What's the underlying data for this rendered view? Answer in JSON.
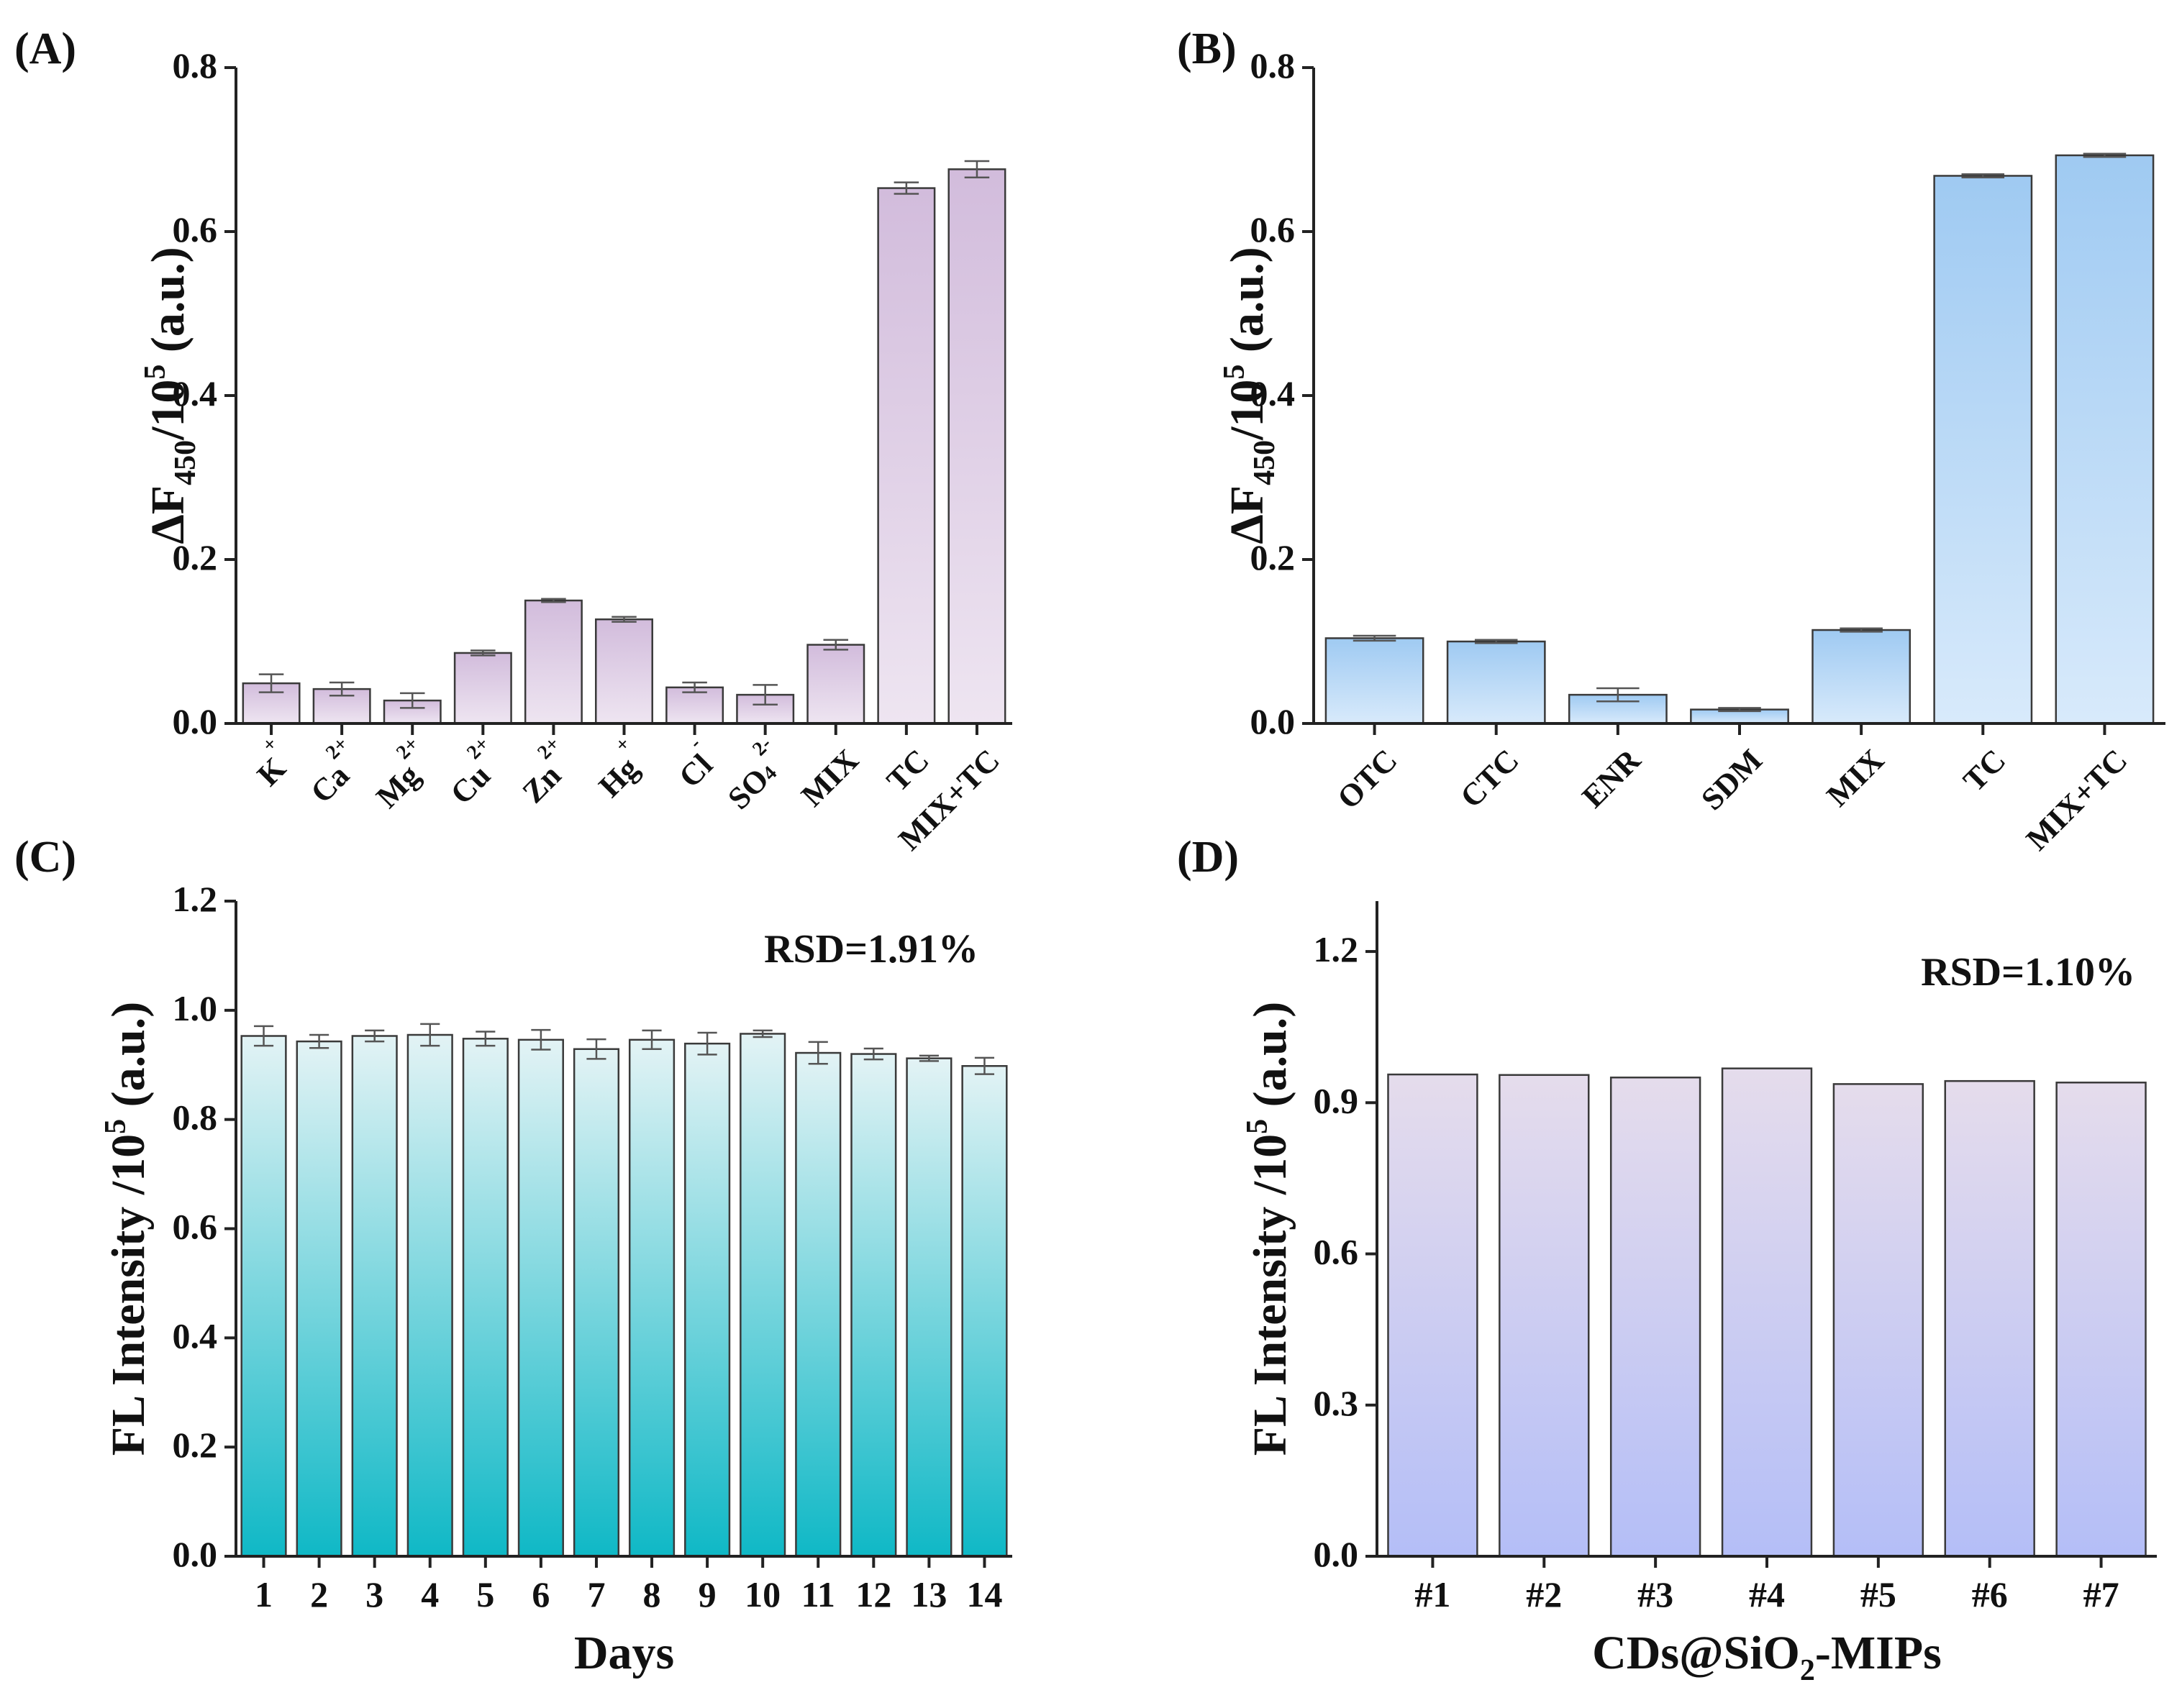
{
  "chart_data": [
    {
      "panel_label": "(A)",
      "type": "bar",
      "ylabel": "ΔF450/10⁵ (a.u.)",
      "ylabel_main": "ΔF",
      "ylabel_sub": "450",
      "ylabel_rest": "/10",
      "ylabel_sup": "5",
      "ylabel_tail": " (a.u.)",
      "xlabel": "",
      "ylim": [
        0,
        0.8
      ],
      "yticks": [
        0.0,
        0.2,
        0.4,
        0.6,
        0.8
      ],
      "ytick_labels": [
        "0.0",
        "0.2",
        "0.4",
        "0.6",
        "0.8"
      ],
      "tick_labels_rotated": true,
      "categories": [
        {
          "base": "K",
          "sup": "+",
          "sub": ""
        },
        {
          "base": "Ca",
          "sup": "2+",
          "sub": ""
        },
        {
          "base": "Mg",
          "sup": "2+",
          "sub": ""
        },
        {
          "base": "Cu",
          "sup": "2+",
          "sub": ""
        },
        {
          "base": "Zn",
          "sup": "2+",
          "sub": ""
        },
        {
          "base": "Hg",
          "sup": "+",
          "sub": ""
        },
        {
          "base": "Cl",
          "sup": "-",
          "sub": ""
        },
        {
          "base": "SO",
          "sup": "2-",
          "sub": "4"
        },
        {
          "base": "MIX",
          "sup": "",
          "sub": ""
        },
        {
          "base": "TC",
          "sup": "",
          "sub": ""
        },
        {
          "base": "MIX+TC",
          "sup": "",
          "sub": ""
        }
      ],
      "values": [
        0.049,
        0.042,
        0.028,
        0.086,
        0.15,
        0.127,
        0.044,
        0.035,
        0.096,
        0.653,
        0.676
      ],
      "errors": [
        0.011,
        0.008,
        0.009,
        0.003,
        0.002,
        0.003,
        0.006,
        0.012,
        0.006,
        0.007,
        0.01
      ],
      "colors": {
        "top": "#d2bcdc",
        "bottom": "#eee5f1"
      }
    },
    {
      "panel_label": "(B)",
      "type": "bar",
      "ylabel": "ΔF450/10⁵ (a.u.)",
      "ylabel_main": "ΔF",
      "ylabel_sub": "450",
      "ylabel_rest": "/10",
      "ylabel_sup": "5",
      "ylabel_tail": " (a.u.)",
      "xlabel": "",
      "ylim": [
        0,
        0.8
      ],
      "yticks": [
        0.0,
        0.2,
        0.4,
        0.6,
        0.8
      ],
      "ytick_labels": [
        "0.0",
        "0.2",
        "0.4",
        "0.6",
        "0.8"
      ],
      "tick_labels_rotated": true,
      "categories": [
        {
          "base": "OTC",
          "sup": "",
          "sub": ""
        },
        {
          "base": "CTC",
          "sup": "",
          "sub": ""
        },
        {
          "base": "ENR",
          "sup": "",
          "sub": ""
        },
        {
          "base": "SDM",
          "sup": "",
          "sub": ""
        },
        {
          "base": "MIX",
          "sup": "",
          "sub": ""
        },
        {
          "base": "TC",
          "sup": "",
          "sub": ""
        },
        {
          "base": "MIX+TC",
          "sup": "",
          "sub": ""
        }
      ],
      "values": [
        0.104,
        0.1,
        0.035,
        0.017,
        0.114,
        0.668,
        0.693
      ],
      "errors": [
        0.003,
        0.002,
        0.008,
        0.002,
        0.002,
        0.002,
        0.002
      ],
      "colors": {
        "top": "#9fcaf2",
        "bottom": "#d8eafb"
      }
    },
    {
      "panel_label": "(C)",
      "type": "bar",
      "ylabel": "FL Intensity /10⁵ (a.u.)",
      "ylabel_main": "FL Intensity /10",
      "ylabel_sub": "",
      "ylabel_rest": "",
      "ylabel_sup": "5",
      "ylabel_tail": " (a.u.)",
      "xlabel": "Days",
      "xlabel_main": "Days",
      "xlabel_sub": "",
      "xlabel_tail": "",
      "annotation": "RSD=1.91%",
      "ylim": [
        0,
        1.2
      ],
      "yticks": [
        0.0,
        0.2,
        0.4,
        0.6,
        0.8,
        1.0,
        1.2
      ],
      "ytick_labels": [
        "0.0",
        "0.2",
        "0.4",
        "0.6",
        "0.8",
        "1.0",
        "1.2"
      ],
      "tick_labels_rotated": false,
      "categories": [
        {
          "base": "1",
          "sup": "",
          "sub": ""
        },
        {
          "base": "2",
          "sup": "",
          "sub": ""
        },
        {
          "base": "3",
          "sup": "",
          "sub": ""
        },
        {
          "base": "4",
          "sup": "",
          "sub": ""
        },
        {
          "base": "5",
          "sup": "",
          "sub": ""
        },
        {
          "base": "6",
          "sup": "",
          "sub": ""
        },
        {
          "base": "7",
          "sup": "",
          "sub": ""
        },
        {
          "base": "8",
          "sup": "",
          "sub": ""
        },
        {
          "base": "9",
          "sup": "",
          "sub": ""
        },
        {
          "base": "10",
          "sup": "",
          "sub": ""
        },
        {
          "base": "11",
          "sup": "",
          "sub": ""
        },
        {
          "base": "12",
          "sup": "",
          "sub": ""
        },
        {
          "base": "13",
          "sup": "",
          "sub": ""
        },
        {
          "base": "14",
          "sup": "",
          "sub": ""
        }
      ],
      "values": [
        0.953,
        0.943,
        0.953,
        0.955,
        0.948,
        0.946,
        0.929,
        0.946,
        0.939,
        0.957,
        0.922,
        0.92,
        0.912,
        0.898
      ],
      "errors": [
        0.018,
        0.012,
        0.01,
        0.02,
        0.013,
        0.018,
        0.018,
        0.017,
        0.02,
        0.006,
        0.02,
        0.01,
        0.005,
        0.015
      ],
      "colors": {
        "top": "#e3f3f5",
        "bottom": "#0fb8c6"
      }
    },
    {
      "panel_label": "(D)",
      "type": "bar",
      "ylabel": "FL Intensity /10⁵ (a.u.)",
      "ylabel_main": "FL Intensity /10",
      "ylabel_sub": "",
      "ylabel_rest": "",
      "ylabel_sup": "5",
      "ylabel_tail": " (a.u.)",
      "xlabel": "CDs@SiO2-MIPs",
      "xlabel_main": "CDs@SiO",
      "xlabel_sub": "2",
      "xlabel_tail": "-MIPs",
      "annotation": "RSD=1.10%",
      "ylim": [
        0,
        1.3
      ],
      "yticks": [
        0.0,
        0.3,
        0.6,
        0.9,
        1.2
      ],
      "ytick_labels": [
        "0.0",
        "0.3",
        "0.6",
        "0.9",
        "1.2"
      ],
      "tick_labels_rotated": false,
      "categories": [
        {
          "base": "#1",
          "sup": "",
          "sub": ""
        },
        {
          "base": "#2",
          "sup": "",
          "sub": ""
        },
        {
          "base": "#3",
          "sup": "",
          "sub": ""
        },
        {
          "base": "#4",
          "sup": "",
          "sub": ""
        },
        {
          "base": "#5",
          "sup": "",
          "sub": ""
        },
        {
          "base": "#6",
          "sup": "",
          "sub": ""
        },
        {
          "base": "#7",
          "sup": "",
          "sub": ""
        }
      ],
      "values": [
        0.956,
        0.955,
        0.95,
        0.968,
        0.937,
        0.943,
        0.94
      ],
      "errors": [
        0,
        0,
        0,
        0,
        0,
        0,
        0
      ],
      "colors": {
        "top": "#e5dcec",
        "bottom": "#b4bef7"
      }
    }
  ]
}
